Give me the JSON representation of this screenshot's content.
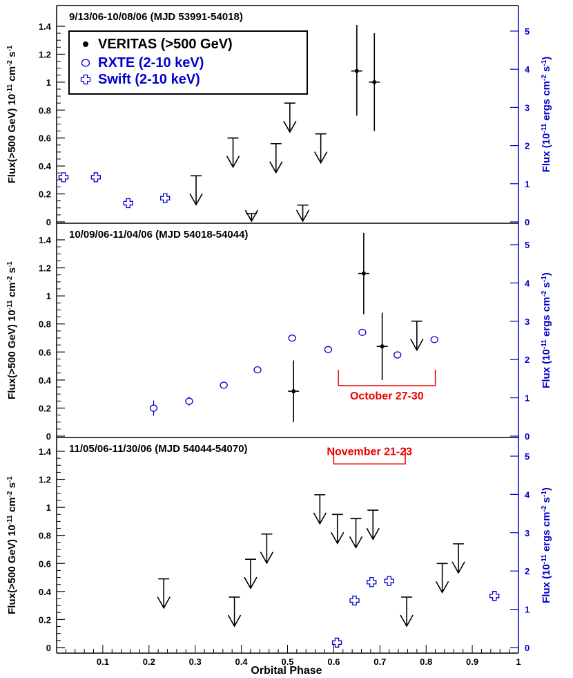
{
  "chart_data": {
    "type": "scatter",
    "x_axis": {
      "label": "Orbital Phase",
      "range": [
        0,
        1
      ],
      "ticks": [
        "0.1",
        "0.2",
        "0.3",
        "0.4",
        "0.5",
        "0.6",
        "0.7",
        "0.8",
        "0.9",
        "1"
      ]
    },
    "colors": {
      "veritas": "#000000",
      "xray": "#0000cc",
      "annotation": "#ee0000"
    },
    "legend": {
      "placement": "top-left",
      "entries": [
        {
          "marker": "filled-circle",
          "color": "#000000",
          "label": "VERITAS (>500 GeV)"
        },
        {
          "marker": "open-ellipse",
          "color": "#0000cc",
          "label": "RXTE (2-10 keV)"
        },
        {
          "marker": "open-cross",
          "color": "#0000cc",
          "label": "Swift  (2-10 keV)"
        }
      ]
    },
    "panels": [
      {
        "title": "9/13/06-10/08/06 (MJD 53991-54018)",
        "ylabel_left": "Flux(>500 GeV) 10^-11 cm^-2 s^-1",
        "ylabel_right": "Flux (10^-11 ergs cm^-2 s^-1)",
        "ylim_left": [
          0,
          1.45
        ],
        "ylim_right": [
          0,
          5.4
        ],
        "yticks_left": [
          "0",
          "0.2",
          "0.4",
          "0.6",
          "0.8",
          "1",
          "1.2",
          "1.4"
        ],
        "yticks_right": [
          "0",
          "1",
          "2",
          "3",
          "4",
          "5"
        ],
        "veritas_points": [
          {
            "x": 0.65,
            "y": 1.08,
            "yerr_low": 0.76,
            "yerr_high": 1.41
          },
          {
            "x": 0.688,
            "y": 1.0,
            "yerr_low": 0.65,
            "yerr_high": 1.35
          }
        ],
        "veritas_upper_limits": [
          {
            "x": 0.302,
            "y": 0.33
          },
          {
            "x": 0.382,
            "y": 0.6
          },
          {
            "x": 0.422,
            "y": 0.06
          },
          {
            "x": 0.475,
            "y": 0.56
          },
          {
            "x": 0.505,
            "y": 0.85
          },
          {
            "x": 0.533,
            "y": 0.12
          },
          {
            "x": 0.572,
            "y": 0.63
          }
        ],
        "rxte_points": [],
        "swift_points": [
          {
            "x": 0.015,
            "y": 1.17,
            "err": 0.1
          },
          {
            "x": 0.085,
            "y": 1.17,
            "err": 0.08
          },
          {
            "x": 0.155,
            "y": 0.49,
            "err": 0.08
          },
          {
            "x": 0.235,
            "y": 0.62,
            "err": 0.08
          }
        ],
        "annotation": null
      },
      {
        "title": "10/09/06-11/04/06 (MJD 54018-54044)",
        "ylabel_left": "Flux(>500 GeV) 10^-11 cm^-2 s^-1",
        "ylabel_right": "Flux (10^-11 ergs cm^-2 s^-1)",
        "ylim_left": [
          0,
          1.45
        ],
        "ylim_right": [
          0,
          5.4
        ],
        "yticks_left": [
          "0",
          "0.2",
          "0.4",
          "0.6",
          "0.8",
          "1",
          "1.2",
          "1.4"
        ],
        "yticks_right": [
          "0",
          "1",
          "2",
          "3",
          "4",
          "5"
        ],
        "veritas_points": [
          {
            "x": 0.513,
            "y": 0.32,
            "yerr_low": 0.1,
            "yerr_high": 0.54
          },
          {
            "x": 0.665,
            "y": 1.16,
            "yerr_low": 0.87,
            "yerr_high": 1.45
          },
          {
            "x": 0.705,
            "y": 0.64,
            "yerr_low": 0.4,
            "yerr_high": 0.88
          }
        ],
        "veritas_upper_limits": [
          {
            "x": 0.78,
            "y": 0.82
          }
        ],
        "rxte_points": [
          {
            "x": 0.21,
            "y": 0.73,
            "err": 0.2
          },
          {
            "x": 0.287,
            "y": 0.91,
            "err": 0.12
          },
          {
            "x": 0.362,
            "y": 1.33,
            "err": 0.06
          },
          {
            "x": 0.435,
            "y": 1.73,
            "err": 0.05
          },
          {
            "x": 0.51,
            "y": 2.56,
            "err": 0.05
          },
          {
            "x": 0.588,
            "y": 2.26,
            "err": 0.05
          },
          {
            "x": 0.662,
            "y": 2.71,
            "err": 0.05
          },
          {
            "x": 0.738,
            "y": 2.12,
            "err": 0.05
          },
          {
            "x": 0.818,
            "y": 2.52,
            "err": 0.05
          }
        ],
        "swift_points": [],
        "annotation": {
          "text": "October 27-30",
          "x_start": 0.61,
          "x_end": 0.82,
          "y": 0.36
        }
      },
      {
        "title": "11/05/06-11/30/06 (MJD 54044-54070)",
        "ylabel_left": "Flux(>500 GeV) 10^-11 cm^-2 s^-1",
        "ylabel_right": "Flux (10^-11 ergs cm^-2 s^-1)",
        "ylim_left": [
          0,
          1.45
        ],
        "ylim_right": [
          0,
          5.4
        ],
        "yticks_left": [
          "0",
          "0.2",
          "0.4",
          "0.6",
          "0.8",
          "1",
          "1.2",
          "1.4"
        ],
        "yticks_right": [
          "0",
          "1",
          "2",
          "3",
          "4",
          "5"
        ],
        "veritas_points": [],
        "veritas_upper_limits": [
          {
            "x": 0.232,
            "y": 0.49
          },
          {
            "x": 0.385,
            "y": 0.36
          },
          {
            "x": 0.42,
            "y": 0.63
          },
          {
            "x": 0.455,
            "y": 0.81
          },
          {
            "x": 0.57,
            "y": 1.09
          },
          {
            "x": 0.608,
            "y": 0.95
          },
          {
            "x": 0.648,
            "y": 0.92
          },
          {
            "x": 0.685,
            "y": 0.98
          },
          {
            "x": 0.758,
            "y": 0.36
          },
          {
            "x": 0.835,
            "y": 0.6
          },
          {
            "x": 0.87,
            "y": 0.74
          }
        ],
        "rxte_points": [],
        "swift_points": [
          {
            "x": 0.607,
            "y": 0.13,
            "err": 0.06
          },
          {
            "x": 0.645,
            "y": 1.23,
            "err": 0.06
          },
          {
            "x": 0.682,
            "y": 1.71,
            "err": 0.06
          },
          {
            "x": 0.72,
            "y": 1.74,
            "err": 0.06
          },
          {
            "x": 0.948,
            "y": 1.35,
            "err": 0.06
          }
        ],
        "annotation": {
          "text": "November 21-23",
          "x_start": 0.6,
          "x_end": 0.755,
          "y": 1.31
        }
      }
    ]
  }
}
